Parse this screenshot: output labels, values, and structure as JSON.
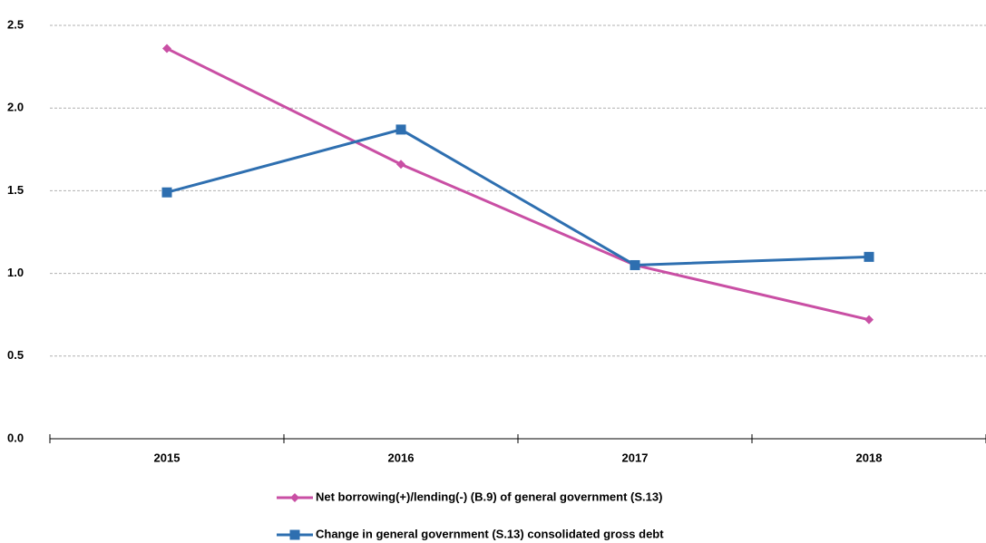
{
  "chart_data": {
    "type": "line",
    "categories": [
      "2015",
      "2016",
      "2017",
      "2018"
    ],
    "series": [
      {
        "name": "Net borrowing(+)/lending(-) (B.9) of general government (S.13)",
        "color": "#c94fa4",
        "marker": "diamond",
        "values": [
          2.36,
          1.66,
          1.05,
          0.72
        ]
      },
      {
        "name": "Change in general government (S.13) consolidated gross debt",
        "color": "#2e6fb0",
        "marker": "square",
        "values": [
          1.49,
          1.87,
          1.05,
          1.1
        ]
      }
    ],
    "ylim": [
      0,
      2.5
    ],
    "yticks": [
      {
        "value": 0,
        "label": "0.0"
      },
      0.5,
      {
        "value": 1,
        "label": "1.0"
      },
      1.5,
      {
        "value": 2,
        "label": "2.0"
      },
      2.5
    ],
    "grid": true
  }
}
